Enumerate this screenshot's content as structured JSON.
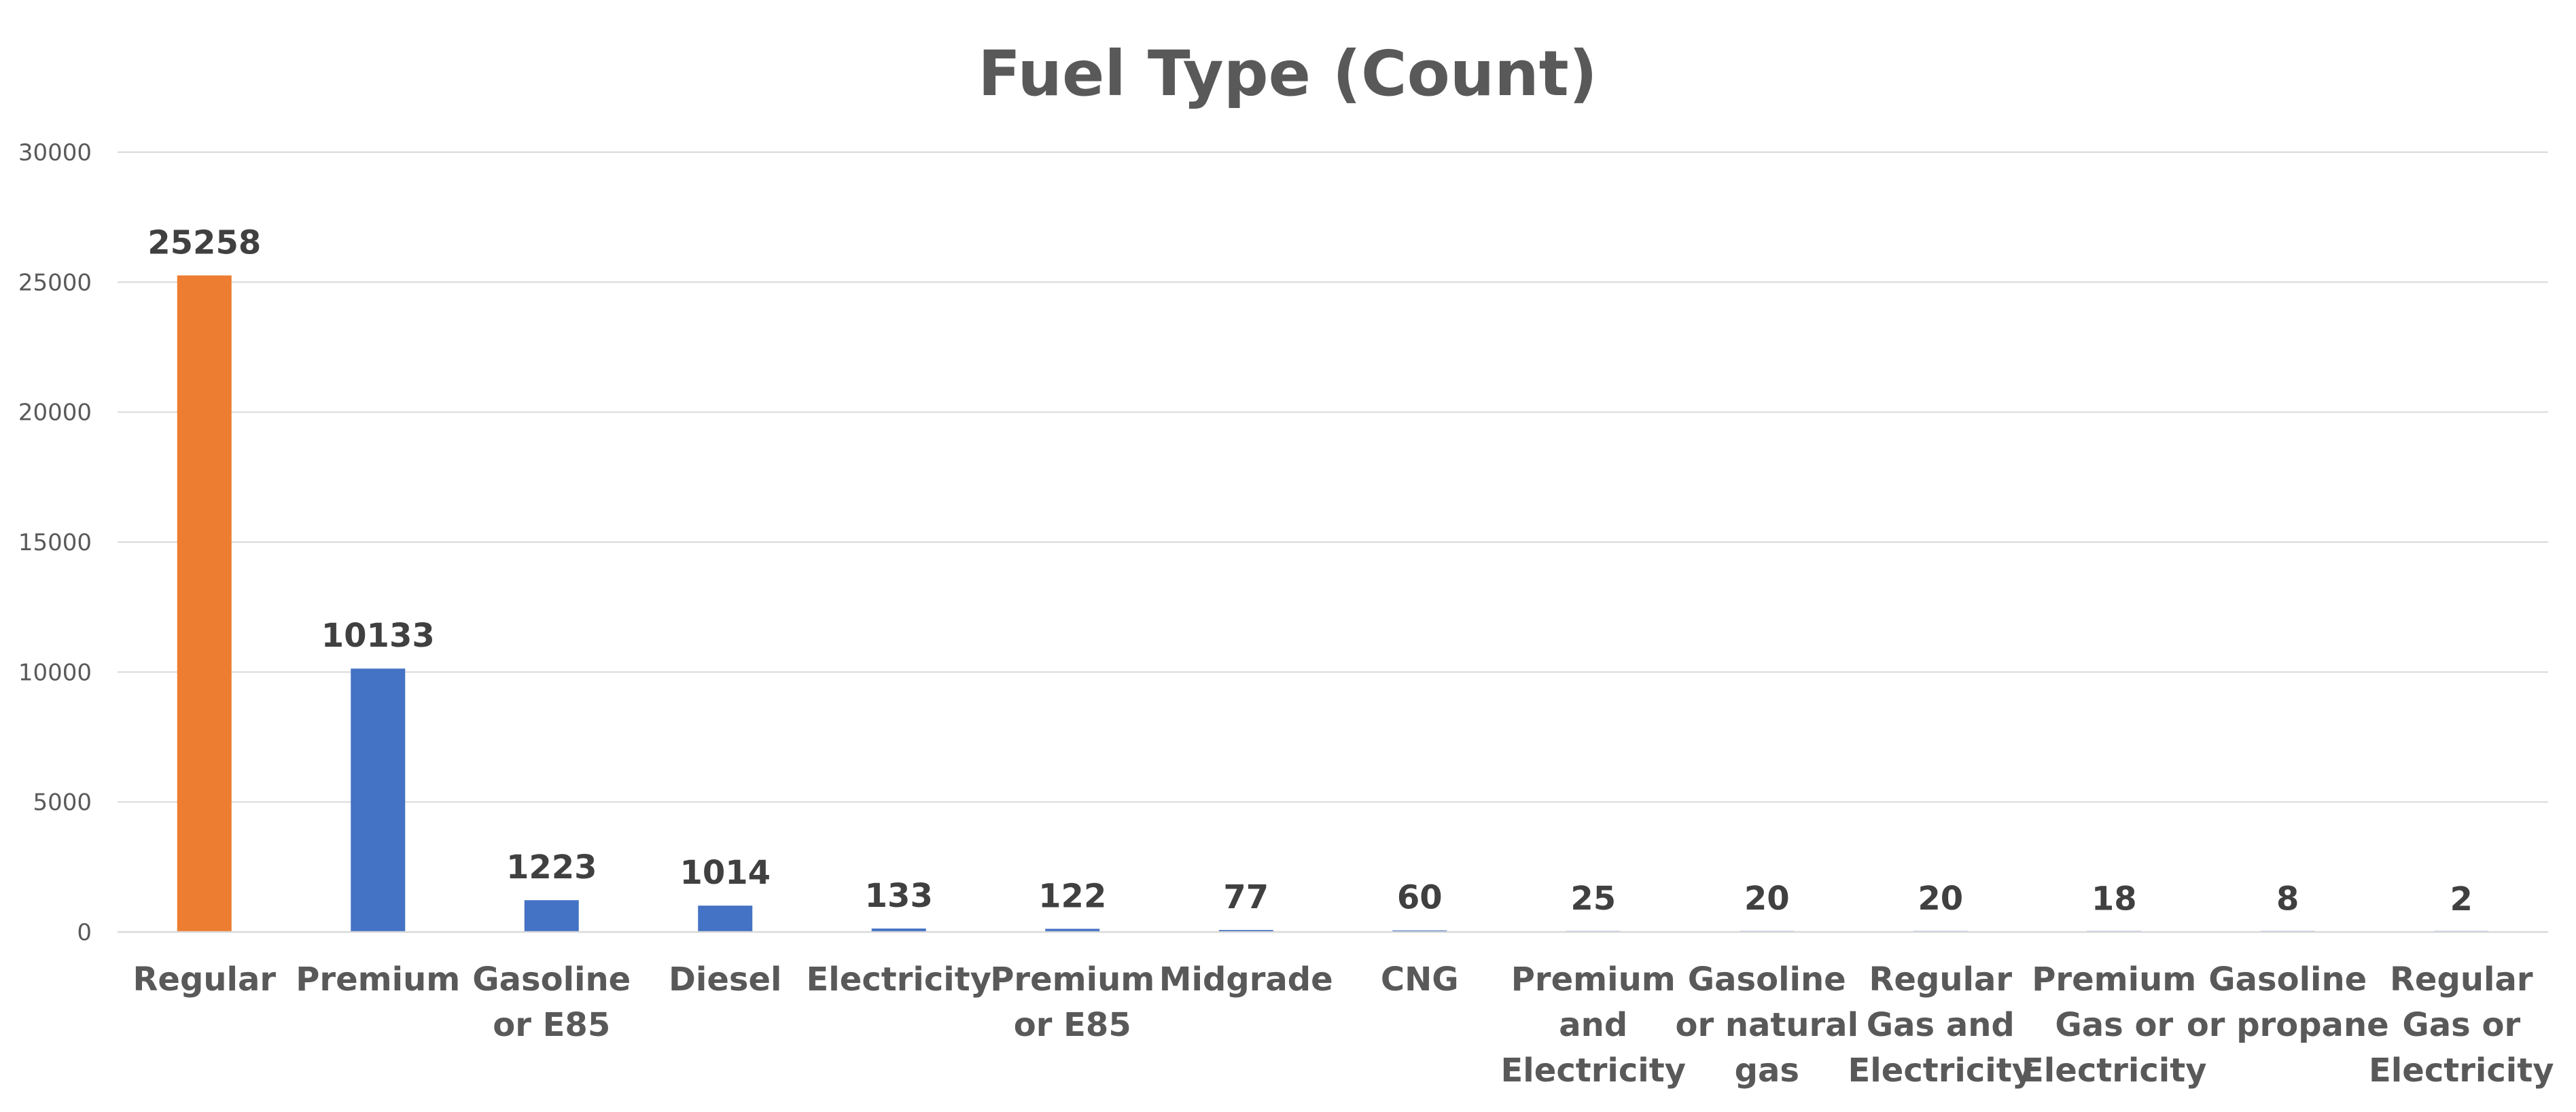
{
  "chart_data": {
    "type": "bar",
    "title": "Fuel Type (Count)",
    "xlabel": "",
    "ylabel": "",
    "ylim": [
      0,
      30000
    ],
    "yticks": [
      0,
      5000,
      10000,
      15000,
      20000,
      25000,
      30000
    ],
    "grid": true,
    "legend": "none",
    "categories": [
      [
        "Regular"
      ],
      [
        "Premium"
      ],
      [
        "Gasoline",
        "or E85"
      ],
      [
        "Diesel"
      ],
      [
        "Electricity"
      ],
      [
        "Premium",
        "or E85"
      ],
      [
        "Midgrade"
      ],
      [
        "CNG"
      ],
      [
        "Premium",
        "and",
        "Electricity"
      ],
      [
        "Gasoline",
        "or natural",
        "gas"
      ],
      [
        "Regular",
        "Gas and",
        "Electricity"
      ],
      [
        "Premium",
        "Gas or",
        "Electricity"
      ],
      [
        "Gasoline",
        "or propane"
      ],
      [
        "Regular",
        "Gas or",
        "Electricity"
      ]
    ],
    "values": [
      25258,
      10133,
      1223,
      1014,
      133,
      122,
      77,
      60,
      25,
      20,
      20,
      18,
      8,
      2
    ],
    "colors": {
      "highlight": "#ED7D31",
      "default": "#4472C4"
    },
    "highlight_index": 0
  }
}
